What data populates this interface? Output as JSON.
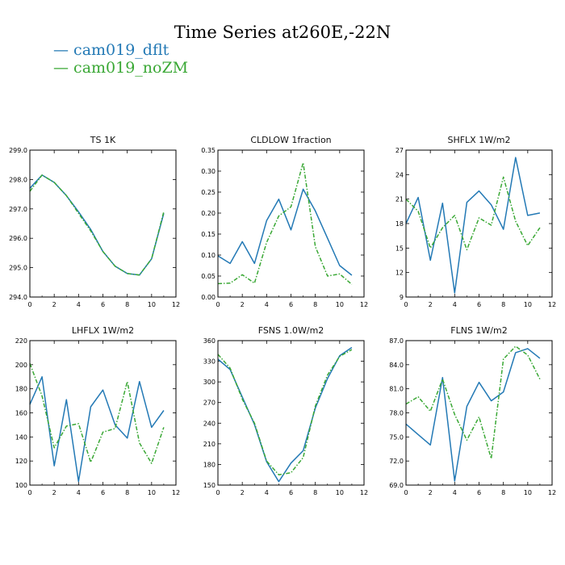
{
  "title": "Time Series at260E,-22N",
  "colors": {
    "dflt": "#2379b5",
    "noZM": "#3aa835"
  },
  "legend": [
    {
      "label": "cam019_dflt",
      "color": "#2379b5"
    },
    {
      "label": "cam019_noZM",
      "color": "#3aa835"
    }
  ],
  "chart_data": [
    {
      "type": "line",
      "title": "TS   1K",
      "x": [
        0,
        1,
        2,
        3,
        4,
        5,
        6,
        7,
        8,
        9,
        10,
        11
      ],
      "xlim": [
        0,
        12
      ],
      "xticks": [
        0,
        2,
        4,
        6,
        8,
        10,
        12
      ],
      "ylim": [
        294.0,
        299.0
      ],
      "yticks": [
        "294.0",
        "295.0",
        "296.0",
        "297.0",
        "298.0",
        "299.0"
      ],
      "series": [
        {
          "name": "cam019_dflt",
          "values": [
            297.7,
            298.15,
            297.9,
            297.45,
            296.9,
            296.3,
            295.55,
            295.05,
            294.8,
            294.75,
            295.3,
            296.85
          ]
        },
        {
          "name": "cam019_noZM",
          "values": [
            297.6,
            298.15,
            297.9,
            297.45,
            296.85,
            296.25,
            295.55,
            295.05,
            294.8,
            294.75,
            295.3,
            296.9
          ]
        }
      ]
    },
    {
      "type": "line",
      "title": "CLDLOW   1fraction",
      "x": [
        0,
        1,
        2,
        3,
        4,
        5,
        6,
        7,
        8,
        9,
        10,
        11
      ],
      "xlim": [
        0,
        12
      ],
      "xticks": [
        0,
        2,
        4,
        6,
        8,
        10,
        12
      ],
      "ylim": [
        0,
        0.35
      ],
      "yticks": [
        "0.00",
        "0.05",
        "0.10",
        "0.15",
        "0.20",
        "0.25",
        "0.30",
        "0.35"
      ],
      "series": [
        {
          "name": "cam019_dflt",
          "values": [
            0.098,
            0.08,
            0.132,
            0.08,
            0.182,
            0.233,
            0.16,
            0.257,
            0.205,
            0.14,
            0.075,
            0.052
          ]
        },
        {
          "name": "cam019_noZM",
          "values": [
            0.032,
            0.033,
            0.053,
            0.033,
            0.13,
            0.193,
            0.215,
            0.32,
            0.12,
            0.05,
            0.055,
            0.03
          ]
        }
      ]
    },
    {
      "type": "line",
      "title": "SHFLX   1W/m2",
      "x": [
        0,
        1,
        2,
        3,
        4,
        5,
        6,
        7,
        8,
        9,
        10,
        11
      ],
      "xlim": [
        0,
        12
      ],
      "xticks": [
        0,
        2,
        4,
        6,
        8,
        10,
        12
      ],
      "ylim": [
        9,
        27
      ],
      "yticks": [
        "9",
        "12",
        "15",
        "18",
        "21",
        "24",
        "27"
      ],
      "series": [
        {
          "name": "cam019_dflt",
          "values": [
            18.0,
            21.2,
            13.5,
            20.5,
            9.5,
            20.6,
            22.0,
            20.3,
            17.3,
            26.1,
            19.0,
            19.3
          ]
        },
        {
          "name": "cam019_noZM",
          "values": [
            21.0,
            19.5,
            15.0,
            17.5,
            19.0,
            14.8,
            18.7,
            17.8,
            23.7,
            18.3,
            15.3,
            17.5
          ]
        }
      ]
    },
    {
      "type": "line",
      "title": "LHFLX   1W/m2",
      "x": [
        0,
        1,
        2,
        3,
        4,
        5,
        6,
        7,
        8,
        9,
        10,
        11
      ],
      "xlim": [
        0,
        12
      ],
      "xticks": [
        0,
        2,
        4,
        6,
        8,
        10,
        12
      ],
      "ylim": [
        100,
        220
      ],
      "yticks": [
        "100",
        "120",
        "140",
        "160",
        "180",
        "200",
        "220"
      ],
      "series": [
        {
          "name": "cam019_dflt",
          "values": [
            167,
            190,
            116,
            171,
            103,
            165,
            179,
            150,
            139,
            186,
            148,
            162
          ]
        },
        {
          "name": "cam019_noZM",
          "values": [
            201,
            174,
            131,
            149,
            151,
            119,
            144,
            147,
            186,
            135,
            118,
            148
          ]
        }
      ]
    },
    {
      "type": "line",
      "title": "FSNS   1.0W/m2",
      "x": [
        0,
        1,
        2,
        3,
        4,
        5,
        6,
        7,
        8,
        9,
        10,
        11
      ],
      "xlim": [
        0,
        12
      ],
      "xticks": [
        0,
        2,
        4,
        6,
        8,
        10,
        12
      ],
      "ylim": [
        150,
        360
      ],
      "yticks": [
        "150",
        "180",
        "210",
        "240",
        "270",
        "300",
        "330",
        "360"
      ],
      "series": [
        {
          "name": "cam019_dflt",
          "values": [
            333,
            318,
            278,
            238,
            184,
            155,
            182,
            200,
            262,
            305,
            338,
            350
          ]
        },
        {
          "name": "cam019_noZM",
          "values": [
            340,
            320,
            275,
            240,
            185,
            165,
            168,
            190,
            265,
            310,
            337,
            347
          ]
        }
      ]
    },
    {
      "type": "line",
      "title": "FLNS   1W/m2",
      "x": [
        0,
        1,
        2,
        3,
        4,
        5,
        6,
        7,
        8,
        9,
        10,
        11
      ],
      "xlim": [
        0,
        12
      ],
      "xticks": [
        0,
        2,
        4,
        6,
        8,
        10,
        12
      ],
      "ylim": [
        69,
        87
      ],
      "yticks": [
        "69.0",
        "72.0",
        "75.0",
        "78.0",
        "81.0",
        "84.0",
        "87.0"
      ],
      "series": [
        {
          "name": "cam019_dflt",
          "values": [
            76.6,
            75.3,
            74.0,
            82.4,
            69.5,
            78.8,
            81.8,
            79.5,
            80.6,
            85.5,
            86.0,
            84.8
          ]
        },
        {
          "name": "cam019_noZM",
          "values": [
            79.1,
            80.0,
            78.2,
            82.2,
            77.8,
            74.6,
            77.5,
            72.3,
            84.7,
            86.3,
            85.2,
            82.2
          ]
        }
      ]
    }
  ]
}
